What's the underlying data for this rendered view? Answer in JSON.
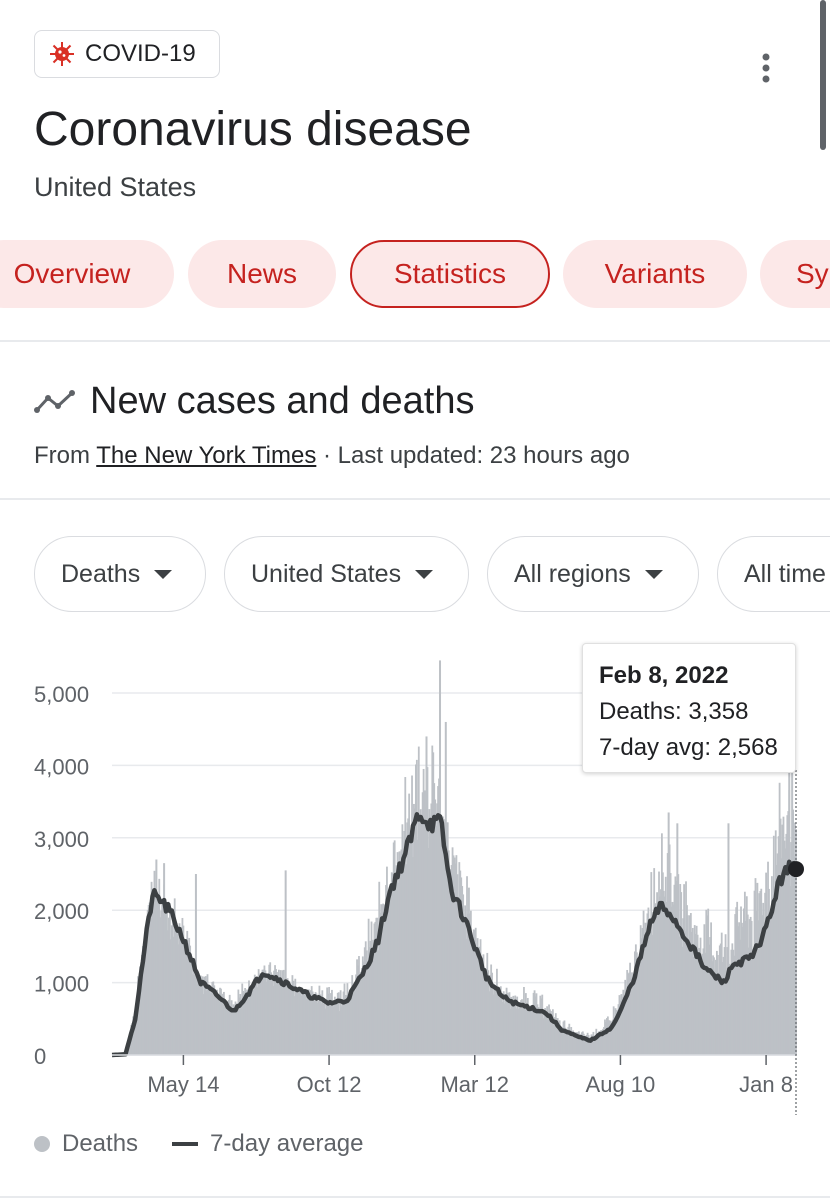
{
  "header": {
    "chip_label": "COVID-19",
    "chip_icon": "virus-icon",
    "title": "Coronavirus disease",
    "subtitle": "United States",
    "more_icon": "more-vert-icon"
  },
  "tabs": [
    {
      "label": "Overview",
      "active": false
    },
    {
      "label": "News",
      "active": false
    },
    {
      "label": "Statistics",
      "active": true
    },
    {
      "label": "Variants",
      "active": false
    },
    {
      "label": "Sy",
      "active": false
    }
  ],
  "section": {
    "icon": "trend-line-icon",
    "title": "New cases and deaths",
    "source_prefix": "From",
    "source_link": "The New York Times",
    "updated": "· Last updated: 23 hours ago"
  },
  "filters": [
    {
      "label": "Deaths"
    },
    {
      "label": "United States"
    },
    {
      "label": "All regions"
    },
    {
      "label": "All time"
    }
  ],
  "tooltip": {
    "date": "Feb 8, 2022",
    "deaths": "Deaths: 3,358",
    "avg": "7-day avg: 2,568"
  },
  "legend": {
    "deaths_label": "Deaths",
    "avg_label": "7-day average"
  },
  "colors": {
    "accent": "#c5221f",
    "tab_bg": "#fce8e8",
    "bars": "#bdc1c6",
    "avg_line": "#3c4043"
  },
  "chart_data": {
    "type": "bar",
    "x_range": [
      "2020-03-01",
      "2022-02-08"
    ],
    "ylim": [
      0,
      5000
    ],
    "yticks": [
      0,
      1000,
      2000,
      3000,
      4000,
      5000
    ],
    "ytick_labels": [
      "0",
      "1,000",
      "2,000",
      "3,000",
      "4,000",
      "5,000"
    ],
    "xticks": [
      {
        "date": "2020-05-14",
        "label": "May 14"
      },
      {
        "date": "2020-10-12",
        "label": "Oct 12"
      },
      {
        "date": "2021-03-12",
        "label": "Mar 12"
      },
      {
        "date": "2021-08-10",
        "label": "Aug 10"
      },
      {
        "date": "2022-01-08",
        "label": "Jan 8"
      }
    ],
    "series": [
      {
        "name": "7-day average",
        "points": [
          [
            "2020-03-01",
            0
          ],
          [
            "2020-03-15",
            10
          ],
          [
            "2020-03-25",
            500
          ],
          [
            "2020-04-05",
            1600
          ],
          [
            "2020-04-12",
            2200
          ],
          [
            "2020-04-20",
            2150
          ],
          [
            "2020-05-01",
            1950
          ],
          [
            "2020-05-14",
            1600
          ],
          [
            "2020-06-01",
            1000
          ],
          [
            "2020-06-20",
            800
          ],
          [
            "2020-07-05",
            600
          ],
          [
            "2020-07-20",
            850
          ],
          [
            "2020-08-05",
            1150
          ],
          [
            "2020-08-20",
            1050
          ],
          [
            "2020-09-10",
            900
          ],
          [
            "2020-09-25",
            800
          ],
          [
            "2020-10-12",
            720
          ],
          [
            "2020-10-30",
            750
          ],
          [
            "2020-11-15",
            1100
          ],
          [
            "2020-12-01",
            1550
          ],
          [
            "2020-12-15",
            2300
          ],
          [
            "2020-12-25",
            2600
          ],
          [
            "2021-01-05",
            3000
          ],
          [
            "2021-01-13",
            3350
          ],
          [
            "2021-01-25",
            3200
          ],
          [
            "2021-02-05",
            3200
          ],
          [
            "2021-02-15",
            2300
          ],
          [
            "2021-03-01",
            1900
          ],
          [
            "2021-03-12",
            1500
          ],
          [
            "2021-03-25",
            1050
          ],
          [
            "2021-04-10",
            800
          ],
          [
            "2021-04-25",
            700
          ],
          [
            "2021-05-10",
            650
          ],
          [
            "2021-05-25",
            580
          ],
          [
            "2021-06-10",
            350
          ],
          [
            "2021-06-25",
            260
          ],
          [
            "2021-07-10",
            200
          ],
          [
            "2021-07-20",
            280
          ],
          [
            "2021-08-01",
            380
          ],
          [
            "2021-08-10",
            600
          ],
          [
            "2021-08-25",
            1100
          ],
          [
            "2021-09-10",
            1800
          ],
          [
            "2021-09-20",
            2050
          ],
          [
            "2021-10-01",
            1950
          ],
          [
            "2021-10-15",
            1650
          ],
          [
            "2021-10-25",
            1450
          ],
          [
            "2021-11-05",
            1200
          ],
          [
            "2021-11-15",
            1100
          ],
          [
            "2021-11-25",
            1000
          ],
          [
            "2021-12-05",
            1250
          ],
          [
            "2021-12-15",
            1300
          ],
          [
            "2021-12-25",
            1350
          ],
          [
            "2022-01-08",
            1750
          ],
          [
            "2022-01-20",
            2300
          ],
          [
            "2022-01-28",
            2600
          ],
          [
            "2022-02-08",
            2568
          ]
        ]
      },
      {
        "name": "Deaths",
        "points": [
          [
            "2020-03-01",
            0
          ],
          [
            "2020-03-15",
            50
          ],
          [
            "2020-03-25",
            700
          ],
          [
            "2020-04-05",
            2100
          ],
          [
            "2020-04-12",
            2700
          ],
          [
            "2020-04-20",
            2500
          ],
          [
            "2020-05-01",
            2400
          ],
          [
            "2020-05-14",
            1900
          ],
          [
            "2020-06-01",
            1300
          ],
          [
            "2020-06-20",
            1000
          ],
          [
            "2020-07-05",
            800
          ],
          [
            "2020-07-20",
            1100
          ],
          [
            "2020-08-05",
            1400
          ],
          [
            "2020-08-20",
            1300
          ],
          [
            "2020-09-10",
            1100
          ],
          [
            "2020-09-25",
            1000
          ],
          [
            "2020-10-12",
            950
          ],
          [
            "2020-10-30",
            1000
          ],
          [
            "2020-11-15",
            1500
          ],
          [
            "2020-12-01",
            2200
          ],
          [
            "2020-12-15",
            3000
          ],
          [
            "2020-12-25",
            3500
          ],
          [
            "2021-01-05",
            3900
          ],
          [
            "2021-01-13",
            4400
          ],
          [
            "2021-01-25",
            4100
          ],
          [
            "2021-02-05",
            4500
          ],
          [
            "2021-02-15",
            3100
          ],
          [
            "2021-03-01",
            2600
          ],
          [
            "2021-03-12",
            2000
          ],
          [
            "2021-03-25",
            1400
          ],
          [
            "2021-04-10",
            1000
          ],
          [
            "2021-04-25",
            900
          ],
          [
            "2021-05-10",
            900
          ],
          [
            "2021-05-25",
            800
          ],
          [
            "2021-06-10",
            500
          ],
          [
            "2021-06-25",
            350
          ],
          [
            "2021-07-10",
            300
          ],
          [
            "2021-07-20",
            400
          ],
          [
            "2021-08-01",
            600
          ],
          [
            "2021-08-10",
            900
          ],
          [
            "2021-08-25",
            1500
          ],
          [
            "2021-09-10",
            2600
          ],
          [
            "2021-09-20",
            3200
          ],
          [
            "2021-10-01",
            2800
          ],
          [
            "2021-10-15",
            2400
          ],
          [
            "2021-10-25",
            2000
          ],
          [
            "2021-11-05",
            2000
          ],
          [
            "2021-11-15",
            1800
          ],
          [
            "2021-11-25",
            1700
          ],
          [
            "2021-12-05",
            2000
          ],
          [
            "2021-12-15",
            2400
          ],
          [
            "2021-12-25",
            2200
          ],
          [
            "2022-01-08",
            2800
          ],
          [
            "2022-01-20",
            3500
          ],
          [
            "2022-01-28",
            3700
          ],
          [
            "2022-02-08",
            3358
          ]
        ]
      }
    ],
    "spikes": [
      [
        "2020-04-16",
        2700
      ],
      [
        "2020-04-24",
        2650
      ],
      [
        "2020-05-27",
        2500
      ],
      [
        "2020-08-28",
        2550
      ],
      [
        "2021-02-04",
        5450
      ],
      [
        "2021-01-21",
        4400
      ],
      [
        "2021-02-10",
        4600
      ],
      [
        "2021-09-29",
        3350
      ],
      [
        "2021-10-08",
        3200
      ],
      [
        "2021-11-30",
        3200
      ],
      [
        "2022-02-01",
        4400
      ],
      [
        "2022-02-04",
        4300
      ]
    ],
    "highlight": {
      "date": "2022-02-08",
      "value": 2568
    },
    "legend": [
      "Deaths",
      "7-day average"
    ],
    "grid": true,
    "legend_position": "bottom-left"
  }
}
